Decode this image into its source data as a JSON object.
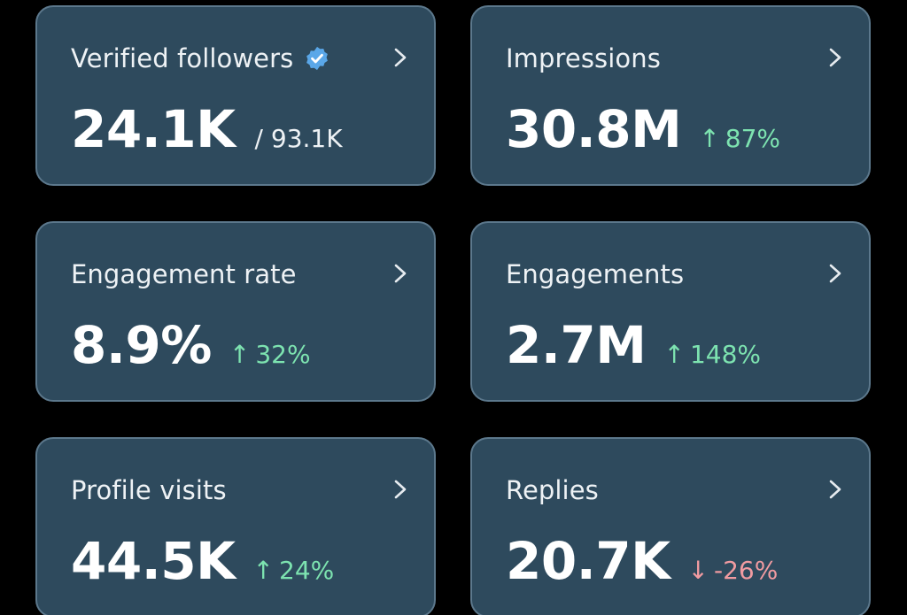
{
  "colors": {
    "background": "#000000",
    "card": "#2e4a5d",
    "card_border": "#5c788c",
    "positive": "#7de3b0",
    "negative": "#f19ba1",
    "verified_badge": "#5aa7e8"
  },
  "cards": [
    {
      "title": "Verified followers",
      "icon": "verified-badge-icon",
      "value": "24.1K",
      "sub": "/ 93.1K"
    },
    {
      "title": "Impressions",
      "value": "30.8M",
      "delta": {
        "direction": "up",
        "arrow": "↑",
        "text": "87%"
      }
    },
    {
      "title": "Engagement rate",
      "value": "8.9%",
      "delta": {
        "direction": "up",
        "arrow": "↑",
        "text": "32%"
      }
    },
    {
      "title": "Engagements",
      "value": "2.7M",
      "delta": {
        "direction": "up",
        "arrow": "↑",
        "text": "148%"
      }
    },
    {
      "title": "Profile visits",
      "value": "44.5K",
      "delta": {
        "direction": "up",
        "arrow": "↑",
        "text": "24%"
      }
    },
    {
      "title": "Replies",
      "value": "20.7K",
      "delta": {
        "direction": "down",
        "arrow": "↓",
        "text": "-26%"
      }
    }
  ]
}
